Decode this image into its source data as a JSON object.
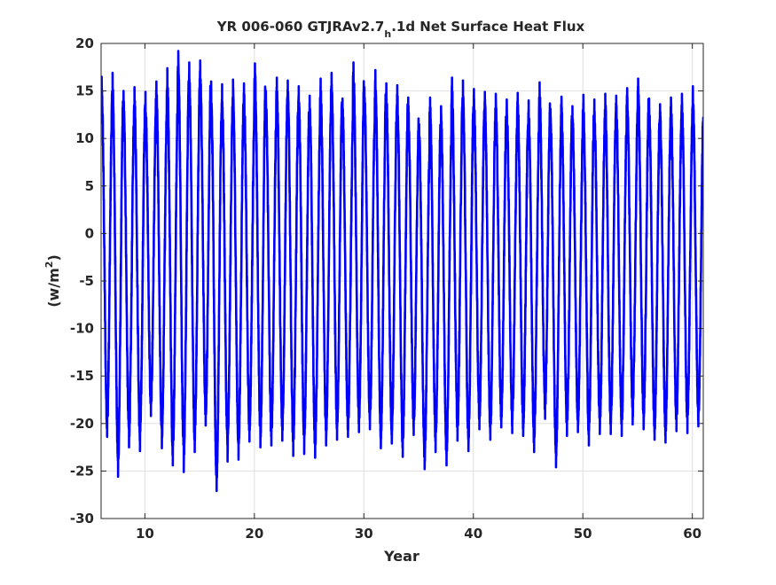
{
  "chart_data": {
    "type": "line",
    "title": "YR 006-060 GTJRAv2.7",
    "title_subscript": "h",
    "title_suffix": ".1d Net Surface Heat Flux",
    "xlabel": "Year",
    "ylabel": "(w/m",
    "ylabel_superscript": "2",
    "ylabel_close": ")",
    "xlim": [
      6,
      61
    ],
    "ylim": [
      -30,
      20
    ],
    "xticks": [
      10,
      20,
      30,
      40,
      50,
      60
    ],
    "xtick_labels": [
      "10",
      "20",
      "30",
      "40",
      "50",
      "60"
    ],
    "yticks": [
      -30,
      -25,
      -20,
      -15,
      -10,
      -5,
      0,
      5,
      10,
      15,
      20
    ],
    "ytick_labels": [
      "-30",
      "-25",
      "-20",
      "-15",
      "-10",
      "-5",
      "0",
      "5",
      "10",
      "15",
      "20"
    ],
    "grid": true,
    "line_color": "#0000ff",
    "series": [
      {
        "years": [
          6,
          7,
          8,
          9,
          10,
          11,
          12,
          13,
          14,
          15,
          16,
          17,
          18,
          19,
          20,
          21,
          22,
          23,
          24,
          25,
          26,
          27,
          28,
          29,
          30,
          31,
          32,
          33,
          34,
          35,
          36,
          37,
          38,
          39,
          40,
          41,
          42,
          43,
          44,
          45,
          46,
          47,
          48,
          49,
          50,
          51,
          52,
          53,
          54,
          55,
          56,
          57,
          58,
          59,
          60
        ],
        "annual_max": [
          16.5,
          16.9,
          15.0,
          15.4,
          14.9,
          16.0,
          17.4,
          19.2,
          18.0,
          18.2,
          16.0,
          15.7,
          16.2,
          15.8,
          17.9,
          15.0,
          16.4,
          16.1,
          15.5,
          14.5,
          16.3,
          16.9,
          14.2,
          18.0,
          15.4,
          17.2,
          15.8,
          15.6,
          14.3,
          11.5,
          14.3,
          13.4,
          16.4,
          16.1,
          15.2,
          14.9,
          14.7,
          14.1,
          14.8,
          14.0,
          15.9,
          13.1,
          14.4,
          13.4,
          14.6,
          14.1,
          14.7,
          14.5,
          15.3,
          16.3,
          14.2,
          13.6,
          14.3,
          14.7,
          15.5
        ],
        "annual_min": [
          -21.4,
          -25.6,
          -22.5,
          -22.9,
          -19.2,
          -22.6,
          -24.4,
          -25.1,
          -23.0,
          -20.2,
          -27.1,
          -24.0,
          -23.8,
          -21.9,
          -22.5,
          -22.3,
          -21.8,
          -23.4,
          -23.2,
          -23.6,
          -22.3,
          -21.7,
          -21.4,
          -20.9,
          -20.6,
          -22.6,
          -22.1,
          -23.5,
          -21.2,
          -24.8,
          -23.0,
          -24.4,
          -21.8,
          -22.9,
          -20.6,
          -21.7,
          -20.4,
          -21.0,
          -21.3,
          -23.0,
          -19.5,
          -24.6,
          -21.3,
          -20.9,
          -22.3,
          -21.1,
          -21.1,
          -21.3,
          -20.1,
          -20.6,
          -21.7,
          -22.0,
          -20.8,
          -21.0,
          -20.3
        ]
      }
    ]
  }
}
